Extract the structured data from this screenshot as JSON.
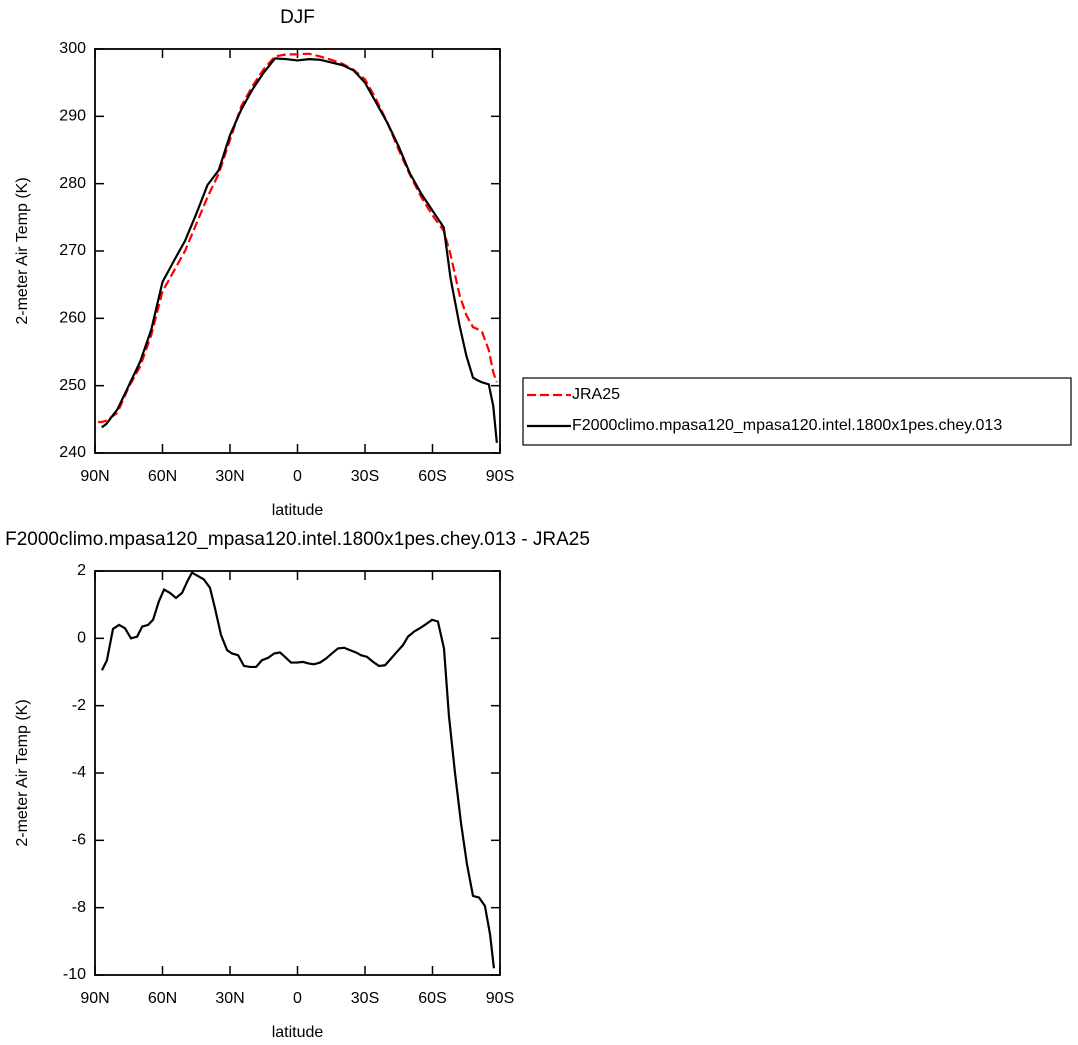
{
  "chart_data": [
    {
      "type": "line",
      "title": "DJF",
      "ylabel": "2-meter Air Temp (K)",
      "xlabel": "latitude",
      "x": [
        88.6,
        87,
        85,
        80,
        75,
        70,
        65,
        60,
        55,
        50,
        45,
        40,
        35,
        30,
        25,
        20,
        15,
        10,
        5,
        0,
        -5,
        -10,
        -15,
        -20,
        -25,
        -30,
        -35,
        -40,
        -45,
        -50,
        -55,
        -60,
        -65,
        -68,
        -70,
        -72,
        -75,
        -78,
        -80,
        -82,
        -85,
        -87,
        -88.6
      ],
      "series": [
        {
          "name": "JRA25",
          "color": "#ff0000",
          "line_style": "dashed",
          "values": [
            244.6,
            244.6,
            244.8,
            246,
            249.8,
            252.8,
            257.5,
            264,
            267,
            270,
            274,
            278,
            281.5,
            286.5,
            291.5,
            294.5,
            297,
            298.9,
            299.2,
            299.2,
            299.3,
            298.9,
            298.4,
            297.8,
            296.9,
            295.5,
            292.5,
            289,
            285,
            281.3,
            278,
            275.3,
            273,
            269.5,
            266.5,
            263.5,
            260.5,
            258.7,
            258.4,
            258,
            255.3,
            252,
            250.5
          ]
        },
        {
          "name": "F2000climo.mpasa120_mpasa120.intel.1800x1pes.chey.013",
          "color": "#000000",
          "line_style": "solid",
          "values": [
            null,
            243.8,
            244.3,
            246.5,
            250,
            253.5,
            258.3,
            265.4,
            268.5,
            271.5,
            275.5,
            279.8,
            282,
            287.2,
            291,
            294,
            296.5,
            298.6,
            298.5,
            298.3,
            298.5,
            298.4,
            298,
            297.6,
            296.8,
            295,
            292,
            289,
            285.5,
            281.5,
            278.5,
            276,
            273.5,
            266,
            262.5,
            259,
            254.5,
            251.2,
            250.8,
            250.5,
            250.2,
            247,
            241.5
          ]
        }
      ],
      "xlim": [
        90,
        -90
      ],
      "xticks": [
        {
          "value": 90,
          "label": "90N"
        },
        {
          "value": 60,
          "label": "60N"
        },
        {
          "value": 30,
          "label": "30N"
        },
        0,
        {
          "value": -30,
          "label": "30S"
        },
        {
          "value": -60,
          "label": "60S"
        },
        {
          "value": -90,
          "label": "90S"
        }
      ],
      "ylim": [
        240,
        300
      ],
      "yticks": [
        240,
        250,
        260,
        270,
        280,
        290,
        300
      ],
      "legend": "outside-right"
    },
    {
      "type": "line",
      "title": "F2000climo.mpasa120_mpasa120.intel.1800x1pes.chey.013 - JRA25",
      "ylabel": "2-meter Air Temp (K)",
      "xlabel": "latitude",
      "x": [
        86.9,
        84.7,
        82,
        79.3,
        76.7,
        74,
        71.3,
        69,
        66.4,
        64.2,
        61.6,
        59.3,
        56.7,
        54,
        51.3,
        48.9,
        46.9,
        44.2,
        41.6,
        38.9,
        36.7,
        34,
        31.3,
        29.1,
        26.4,
        23.8,
        21.1,
        18.4,
        15.8,
        13.1,
        10.4,
        7.8,
        5.6,
        2.9,
        0.2,
        -2.4,
        -5.1,
        -7.3,
        -10,
        -12.7,
        -15.3,
        -18,
        -20.7,
        -23.3,
        -26,
        -28.2,
        -30.9,
        -33.6,
        -36.2,
        -38.9,
        -41.6,
        -44.2,
        -46.9,
        -49.1,
        -51.8,
        -54.4,
        -57.1,
        -59.8,
        -62.4,
        -65.1,
        -67.3,
        -70,
        -72.7,
        -75.3,
        -78,
        -80.7,
        -83.3,
        -85.6,
        -87.3
      ],
      "series": [
        {
          "color": "#000000",
          "line_style": "solid",
          "values": [
            -0.95,
            -0.65,
            0.28,
            0.4,
            0.3,
            0.0,
            0.05,
            0.35,
            0.4,
            0.55,
            1.1,
            1.45,
            1.35,
            1.2,
            1.35,
            1.7,
            1.95,
            1.85,
            1.75,
            1.5,
            0.9,
            0.1,
            -0.35,
            -0.45,
            -0.5,
            -0.82,
            -0.85,
            -0.85,
            -0.65,
            -0.58,
            -0.45,
            -0.42,
            -0.55,
            -0.72,
            -0.72,
            -0.7,
            -0.75,
            -0.77,
            -0.72,
            -0.6,
            -0.45,
            -0.3,
            -0.28,
            -0.35,
            -0.42,
            -0.5,
            -0.55,
            -0.7,
            -0.82,
            -0.8,
            -0.6,
            -0.4,
            -0.2,
            0.05,
            0.2,
            0.3,
            0.42,
            0.55,
            0.5,
            -0.3,
            -2.3,
            -4.0,
            -5.5,
            -6.7,
            -7.65,
            -7.7,
            -7.95,
            -8.8,
            -9.8
          ]
        }
      ],
      "xlim": [
        90,
        -90
      ],
      "xticks": [
        {
          "value": 90,
          "label": "90N"
        },
        {
          "value": 60,
          "label": "60N"
        },
        {
          "value": 30,
          "label": "30N"
        },
        0,
        {
          "value": -30,
          "label": "30S"
        },
        {
          "value": -60,
          "label": "60S"
        },
        {
          "value": -90,
          "label": "90S"
        }
      ],
      "ylim": [
        -10,
        2
      ],
      "yticks": [
        -10,
        -8,
        -6,
        -4,
        -2,
        0,
        2
      ]
    }
  ]
}
